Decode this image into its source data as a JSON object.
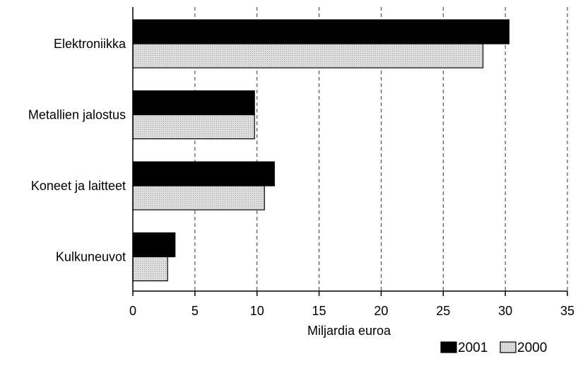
{
  "chart_data": {
    "type": "bar",
    "orientation": "horizontal",
    "categories": [
      "Elektroniikka",
      "Metallien jalostus",
      "Koneet ja laitteet",
      "Kulkuneuvot"
    ],
    "series": [
      {
        "name": "2001",
        "values": [
          30.3,
          9.8,
          11.4,
          3.4
        ],
        "color": "#000000"
      },
      {
        "name": "2000",
        "values": [
          28.2,
          9.8,
          10.6,
          2.8
        ],
        "color": "#d4d4d4"
      }
    ],
    "xlabel": "Miljardia euroa",
    "ylabel": "",
    "xlim": [
      0,
      35
    ],
    "xticks": [
      0,
      5,
      10,
      15,
      20,
      25,
      30,
      35
    ],
    "grid": "vertical dashed",
    "legend": "bottom-right"
  }
}
